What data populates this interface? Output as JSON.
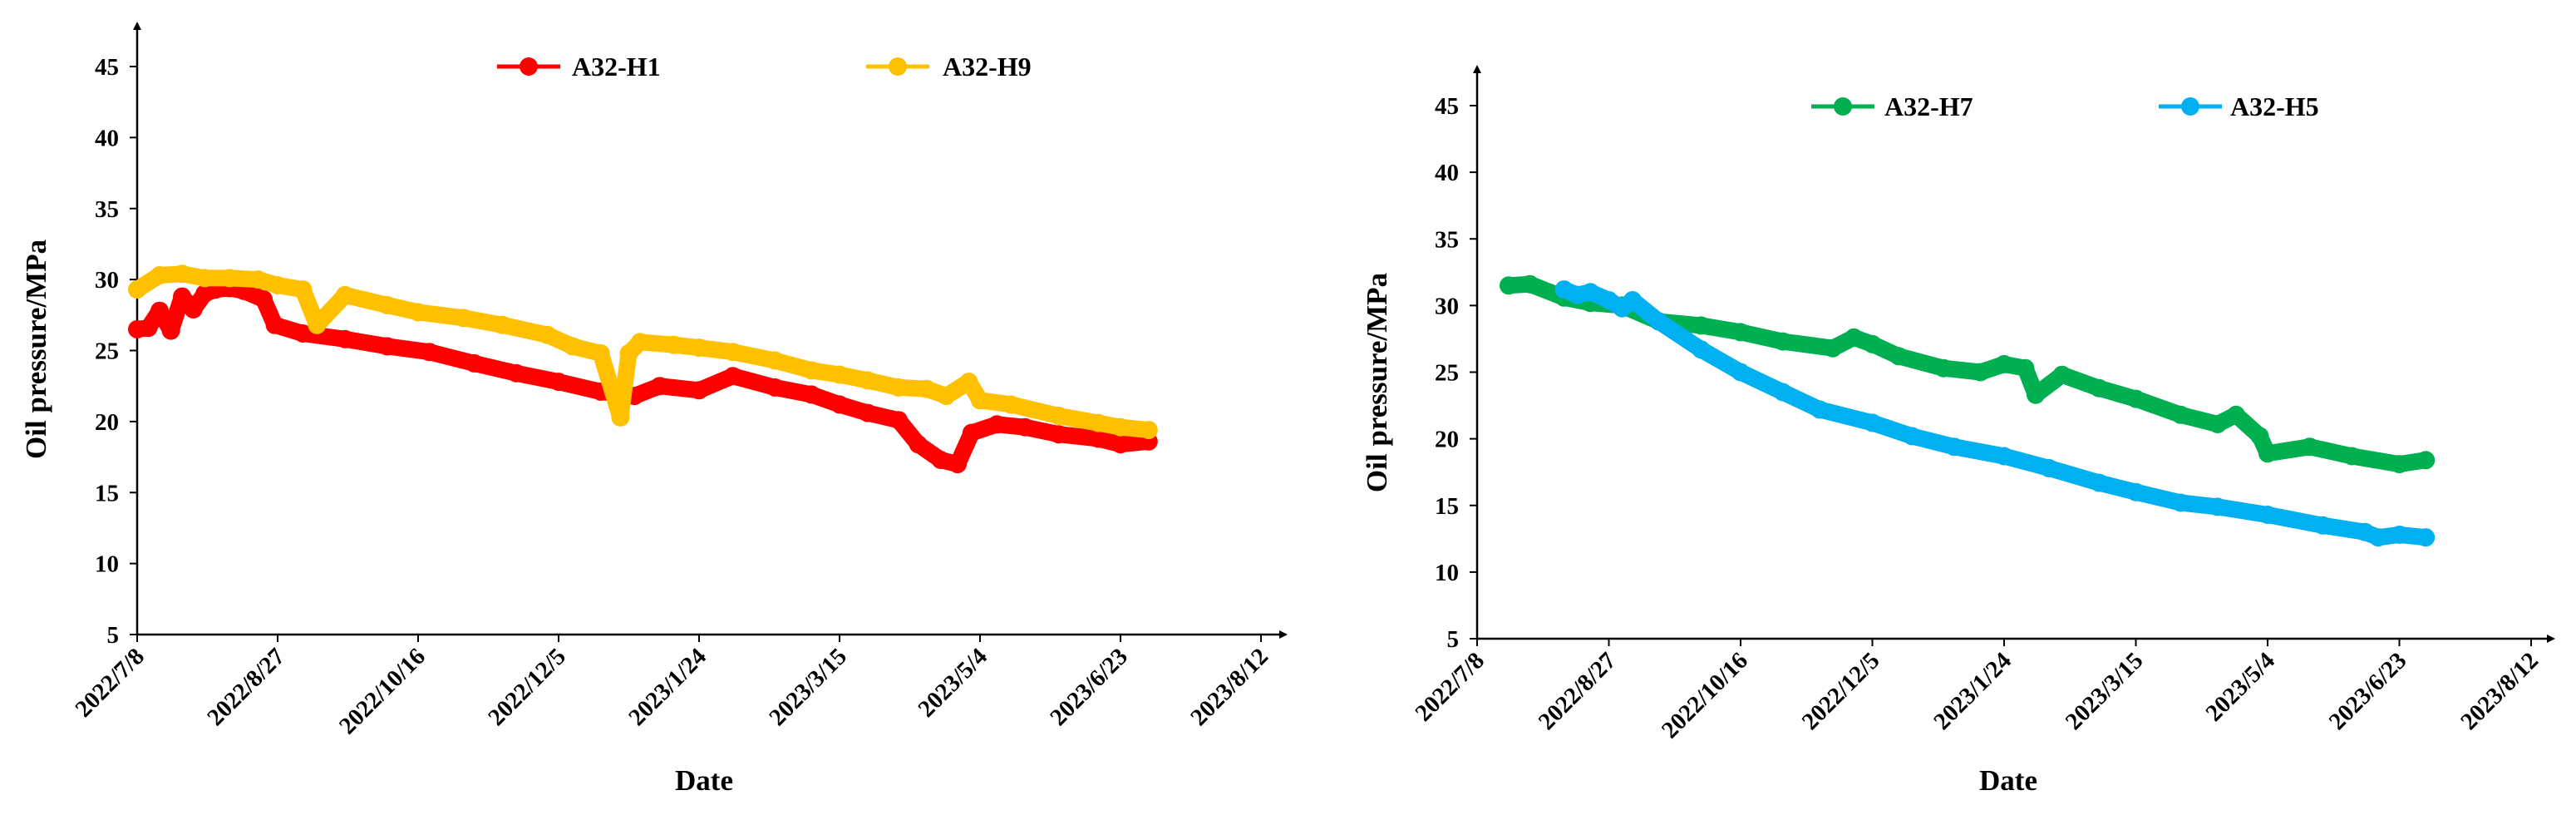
{
  "chart_data": [
    {
      "type": "scatter",
      "xlabel": "Date",
      "ylabel": "Oil pressure/MPa",
      "yticks": [
        5,
        10,
        15,
        20,
        25,
        30,
        35,
        40,
        45
      ],
      "xticks": [
        "2022/7/8",
        "2022/8/27",
        "2022/10/16",
        "2022/12/5",
        "2023/1/24",
        "2023/3/15",
        "2023/5/4",
        "2023/6/23",
        "2023/8/12"
      ],
      "ylim": [
        5,
        45
      ],
      "xlim": [
        "2022/7/8",
        "2023/8/12"
      ],
      "grid": false,
      "legend": "top",
      "series": [
        {
          "name": "A32-H1",
          "color": "#ff0000",
          "points": [
            [
              "2022/7/8",
              26.5
            ],
            [
              "2022/7/12",
              26.6
            ],
            [
              "2022/7/16",
              27.8
            ],
            [
              "2022/7/20",
              26.4
            ],
            [
              "2022/7/24",
              28.8
            ],
            [
              "2022/7/28",
              27.9
            ],
            [
              "2022/8/1",
              29.0
            ],
            [
              "2022/8/5",
              29.3
            ],
            [
              "2022/8/10",
              29.4
            ],
            [
              "2022/8/15",
              29.2
            ],
            [
              "2022/8/22",
              28.6
            ],
            [
              "2022/8/26",
              26.8
            ],
            [
              "2022/9/5",
              26.2
            ],
            [
              "2022/9/20",
              25.8
            ],
            [
              "2022/10/5",
              25.3
            ],
            [
              "2022/10/20",
              24.9
            ],
            [
              "2022/11/5",
              24.1
            ],
            [
              "2022/11/20",
              23.4
            ],
            [
              "2022/12/5",
              22.8
            ],
            [
              "2022/12/20",
              22.1
            ],
            [
              "2023/1/1",
              21.8
            ],
            [
              "2023/1/10",
              22.5
            ],
            [
              "2023/1/24",
              22.2
            ],
            [
              "2023/2/5",
              23.2
            ],
            [
              "2023/2/20",
              22.4
            ],
            [
              "2023/3/5",
              21.9
            ],
            [
              "2023/3/15",
              21.2
            ],
            [
              "2023/3/25",
              20.6
            ],
            [
              "2023/4/5",
              20.1
            ],
            [
              "2023/4/12",
              18.4
            ],
            [
              "2023/4/20",
              17.3
            ],
            [
              "2023/4/26",
              17.0
            ],
            [
              "2023/5/1",
              19.2
            ],
            [
              "2023/5/10",
              19.8
            ],
            [
              "2023/5/20",
              19.6
            ],
            [
              "2023/6/1",
              19.1
            ],
            [
              "2023/6/15",
              18.8
            ],
            [
              "2023/6/23",
              18.4
            ],
            [
              "2023/7/3",
              18.6
            ]
          ]
        },
        {
          "name": "A32-H9",
          "color": "#ffc000",
          "points": [
            [
              "2022/7/8",
              29.3
            ],
            [
              "2022/7/16",
              30.3
            ],
            [
              "2022/7/24",
              30.4
            ],
            [
              "2022/8/1",
              30.1
            ],
            [
              "2022/8/10",
              30.1
            ],
            [
              "2022/8/20",
              30.0
            ],
            [
              "2022/8/27",
              29.6
            ],
            [
              "2022/9/5",
              29.3
            ],
            [
              "2022/9/10",
              26.8
            ],
            [
              "2022/9/20",
              28.9
            ],
            [
              "2022/10/5",
              28.2
            ],
            [
              "2022/10/16",
              27.7
            ],
            [
              "2022/11/1",
              27.3
            ],
            [
              "2022/11/15",
              26.8
            ],
            [
              "2022/12/1",
              26.1
            ],
            [
              "2022/12/10",
              25.3
            ],
            [
              "2022/12/20",
              24.8
            ],
            [
              "2022/12/27",
              20.3
            ],
            [
              "2022/12/30",
              24.8
            ],
            [
              "2023/1/3",
              25.6
            ],
            [
              "2023/1/15",
              25.4
            ],
            [
              "2023/1/24",
              25.2
            ],
            [
              "2023/2/5",
              24.9
            ],
            [
              "2023/2/20",
              24.3
            ],
            [
              "2023/3/5",
              23.6
            ],
            [
              "2023/3/15",
              23.3
            ],
            [
              "2023/3/25",
              22.9
            ],
            [
              "2023/4/5",
              22.4
            ],
            [
              "2023/4/15",
              22.3
            ],
            [
              "2023/4/22",
              21.8
            ],
            [
              "2023/4/30",
              22.8
            ],
            [
              "2023/5/4",
              21.5
            ],
            [
              "2023/5/15",
              21.2
            ],
            [
              "2023/6/1",
              20.4
            ],
            [
              "2023/6/15",
              19.9
            ],
            [
              "2023/6/23",
              19.6
            ],
            [
              "2023/7/3",
              19.4
            ]
          ]
        }
      ]
    },
    {
      "type": "scatter",
      "xlabel": "Date",
      "ylabel": "Oil pressure/MPa",
      "yticks": [
        5,
        10,
        15,
        20,
        25,
        30,
        35,
        40,
        45
      ],
      "xticks": [
        "2022/7/8",
        "2022/8/27",
        "2022/10/16",
        "2022/12/5",
        "2023/1/24",
        "2023/3/15",
        "2023/5/4",
        "2023/6/23",
        "2023/8/12"
      ],
      "ylim": [
        5,
        45
      ],
      "xlim": [
        "2022/7/8",
        "2023/8/12"
      ],
      "grid": false,
      "legend": "top",
      "series": [
        {
          "name": "A32-H7",
          "color": "#00b050",
          "points": [
            [
              "2022/7/20",
              31.5
            ],
            [
              "2022/7/28",
              31.6
            ],
            [
              "2022/8/10",
              30.6
            ],
            [
              "2022/8/20",
              30.2
            ],
            [
              "2022/9/1",
              30.0
            ],
            [
              "2022/9/15",
              28.8
            ],
            [
              "2022/10/1",
              28.5
            ],
            [
              "2022/10/16",
              28.0
            ],
            [
              "2022/11/1",
              27.3
            ],
            [
              "2022/11/20",
              26.8
            ],
            [
              "2022/11/28",
              27.6
            ],
            [
              "2022/12/5",
              27.1
            ],
            [
              "2022/12/15",
              26.2
            ],
            [
              "2023/1/1",
              25.3
            ],
            [
              "2023/1/15",
              25.0
            ],
            [
              "2023/1/24",
              25.6
            ],
            [
              "2023/2/1",
              25.3
            ],
            [
              "2023/2/5",
              23.3
            ],
            [
              "2023/2/15",
              24.8
            ],
            [
              "2023/3/1",
              23.8
            ],
            [
              "2023/3/15",
              23.0
            ],
            [
              "2023/4/1",
              21.8
            ],
            [
              "2023/4/15",
              21.1
            ],
            [
              "2023/4/22",
              21.8
            ],
            [
              "2023/5/1",
              20.2
            ],
            [
              "2023/5/4",
              18.9
            ],
            [
              "2023/5/20",
              19.4
            ],
            [
              "2023/6/5",
              18.7
            ],
            [
              "2023/6/23",
              18.1
            ],
            [
              "2023/7/3",
              18.4
            ]
          ]
        },
        {
          "name": "A32-H5",
          "color": "#00b0f0",
          "points": [
            [
              "2022/8/10",
              31.2
            ],
            [
              "2022/8/15",
              30.8
            ],
            [
              "2022/8/20",
              31.0
            ],
            [
              "2022/8/27",
              30.4
            ],
            [
              "2022/9/1",
              29.8
            ],
            [
              "2022/9/5",
              30.4
            ],
            [
              "2022/9/15",
              28.8
            ],
            [
              "2022/10/1",
              26.7
            ],
            [
              "2022/10/16",
              25.0
            ],
            [
              "2022/11/1",
              23.5
            ],
            [
              "2022/11/15",
              22.2
            ],
            [
              "2022/12/5",
              21.2
            ],
            [
              "2022/12/20",
              20.2
            ],
            [
              "2023/1/5",
              19.4
            ],
            [
              "2023/1/24",
              18.7
            ],
            [
              "2023/2/10",
              17.8
            ],
            [
              "2023/3/1",
              16.7
            ],
            [
              "2023/3/15",
              16.0
            ],
            [
              "2023/4/1",
              15.2
            ],
            [
              "2023/4/15",
              14.9
            ],
            [
              "2023/5/4",
              14.3
            ],
            [
              "2023/5/25",
              13.5
            ],
            [
              "2023/6/10",
              13.0
            ],
            [
              "2023/6/15",
              12.6
            ],
            [
              "2023/6/23",
              12.8
            ],
            [
              "2023/7/3",
              12.6
            ]
          ]
        }
      ]
    }
  ]
}
